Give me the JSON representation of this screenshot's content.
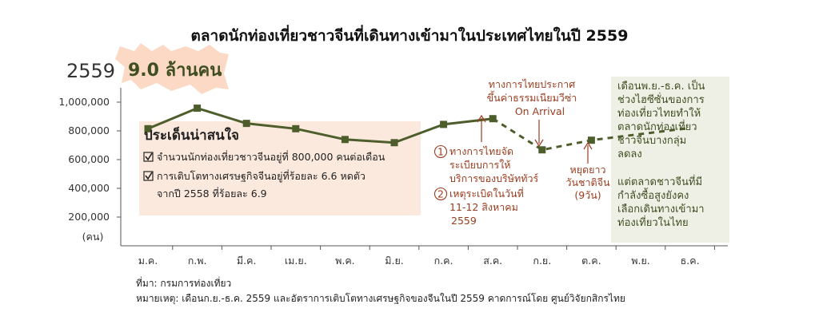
{
  "chart_data": {
    "type": "line",
    "title": "ตลาดนักท่องเที่ยวชาวจีนที่เดินทางเข้ามาในประเทศไทยในปี 2559",
    "categories": [
      "ม.ค.",
      "ก.พ.",
      "มี.ค.",
      "เม.ย.",
      "พ.ค.",
      "มิ.ย.",
      "ก.ค.",
      "ส.ค.",
      "ก.ย.",
      "ต.ค.",
      "พ.ย.",
      "ธ.ค."
    ],
    "series": [
      {
        "values": [
          815000,
          958000,
          852000,
          815000,
          740000,
          718000,
          845000,
          885000,
          668000,
          735000,
          778000,
          820000
        ]
      }
    ],
    "actual_through_index": 7,
    "ylim": [
      0,
      1100000
    ],
    "yticks": [
      200000,
      400000,
      600000,
      800000,
      1000000
    ],
    "ytick_labels": [
      "200,000",
      "400,000",
      "600,000",
      "800,000",
      "1,000,000"
    ],
    "ylabel": "(คน)",
    "grid": false,
    "colors": {
      "line": "#4d5e2c",
      "marker": "#4d5e2c",
      "forecast_bg": "#eef0e6",
      "box_bg": "#fbe9dd",
      "burst": "#fbd9c4",
      "annotation": "#9a3d1f"
    }
  },
  "headline": {
    "year": "2559",
    "value": "9.0 ล้านคน"
  },
  "highlight_box": {
    "title": "ประเด็นน่าสนใจ",
    "items": [
      "จำนวนนักท่องเที่ยวชาวจีนอยู่ที่ 800,000 คนต่อเดือน",
      "การเติบโตทางเศรษฐกิจจีนอยู่ที่ร้อยละ 6.6 หดตัว",
      "จากปี 2558 ที่ร้อยละ 6.9"
    ]
  },
  "annotations": {
    "visa": [
      "ทางการไทยประกาศ",
      "ขึ้นค่าธรรมเนียมวีซ่า",
      "On Arrival"
    ],
    "tour": {
      "num": "1",
      "lines": [
        "ทางการไทยจัด",
        "ระเบียบการให้",
        "บริการของบริษัททัวร์"
      ]
    },
    "bomb": {
      "num": "2",
      "lines": [
        "เหตุระเบิดในวันที่",
        "11-12 สิงหาคม",
        "2559"
      ]
    },
    "holiday": [
      "หยุดยาว",
      "วันชาติจีน",
      "(9วัน)"
    ]
  },
  "forecast_notes": {
    "top": [
      "เดือนพ.ย.-ธ.ค. เป็น",
      "ช่วงไฮซีซั่นของการ",
      "ท่องเที่ยวไทยทำให้",
      "ตลาดนักท่องเที่ยว",
      "ชาวจีนบางกลุ่ม",
      "ลดลง"
    ],
    "bottom": [
      "แต่ตลาดชาวจีนที่มี",
      "กำลังซื้อสูงยังคง",
      "เลือกเดินทางเข้ามา",
      "ท่องเที่ยวในไทย"
    ]
  },
  "footer": {
    "source": "ที่มา: กรมการท่องเที่ยว",
    "note": "หมายเหตุ: เดือนก.ย.-ธ.ค. 2559 และอัตราการเติบโตทางเศรษฐกิจของจีนในปี 2559 คาดการณ์โดย ศูนย์วิจัยกสิกรไทย"
  }
}
